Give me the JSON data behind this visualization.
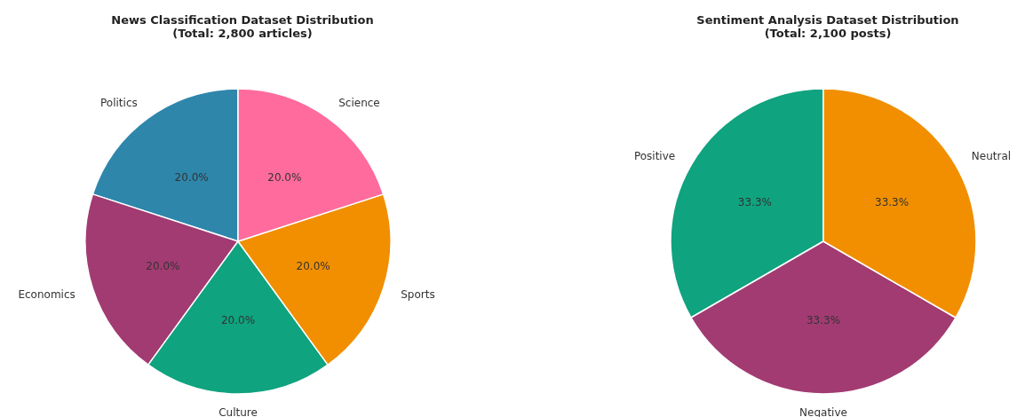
{
  "chart_data": [
    {
      "type": "pie",
      "title": "News Classification Dataset Distribution\n(Total: 2,800 articles)",
      "categories": [
        "Politics",
        "Economics",
        "Culture",
        "Sports",
        "Science"
      ],
      "values": [
        20,
        20,
        20,
        20,
        20
      ],
      "value_labels": [
        "20.0%",
        "20.0%",
        "20.0%",
        "20.0%",
        "20.0%"
      ],
      "colors": [
        "#2e86ab",
        "#a23b72",
        "#0fa37f",
        "#f18f01",
        "#ff6b9d"
      ],
      "legend": false
    },
    {
      "type": "pie",
      "title": "Sentiment Analysis Dataset Distribution\n(Total: 2,100 posts)",
      "categories": [
        "Positive",
        "Negative",
        "Neutral"
      ],
      "values": [
        33.3,
        33.3,
        33.3
      ],
      "value_labels": [
        "33.3%",
        "33.3%",
        "33.3%"
      ],
      "colors": [
        "#0fa37f",
        "#a23b72",
        "#f18f01"
      ],
      "legend": false
    }
  ]
}
